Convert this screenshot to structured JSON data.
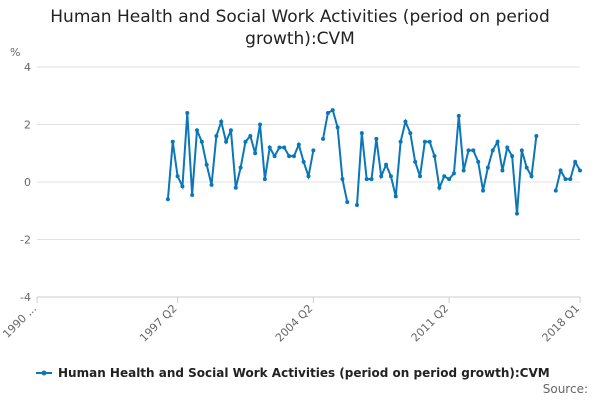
{
  "chart_data": {
    "type": "line",
    "title": "Human Health and Social Work Activities (period on period growth):CVM",
    "y_label": "%",
    "source": "Source:",
    "categories": [
      "1990 ...",
      null,
      null,
      null,
      null,
      null,
      null,
      null,
      null,
      null,
      null,
      null,
      null,
      null,
      null,
      null,
      null,
      null,
      null,
      null,
      null,
      null,
      null,
      null,
      null,
      null,
      null,
      null,
      null,
      "1997 Q2",
      null,
      null,
      null,
      null,
      null,
      null,
      null,
      null,
      null,
      null,
      null,
      null,
      null,
      null,
      null,
      null,
      null,
      null,
      null,
      null,
      null,
      null,
      null,
      null,
      null,
      null,
      null,
      "2004 Q2",
      null,
      null,
      null,
      null,
      null,
      null,
      null,
      null,
      null,
      null,
      null,
      null,
      null,
      null,
      null,
      null,
      null,
      null,
      null,
      null,
      null,
      null,
      null,
      null,
      null,
      null,
      null,
      "2011 Q2",
      null,
      null,
      null,
      null,
      null,
      null,
      null,
      null,
      null,
      null,
      null,
      null,
      null,
      null,
      null,
      null,
      null,
      null,
      null,
      null,
      null,
      null,
      null,
      null,
      null,
      null,
      "2018 Q1"
    ],
    "series": [
      {
        "name": "Human Health and Social Work Activities (period on period growth):CVM",
        "color": "#0b76b8",
        "values": [
          null,
          null,
          null,
          null,
          null,
          null,
          null,
          null,
          null,
          null,
          null,
          null,
          null,
          null,
          null,
          null,
          null,
          null,
          null,
          null,
          null,
          null,
          null,
          null,
          null,
          null,
          null,
          -0.6,
          1.4,
          0.2,
          -0.15,
          2.4,
          -0.45,
          1.8,
          1.4,
          0.6,
          -0.1,
          1.6,
          2.1,
          1.4,
          1.8,
          -0.2,
          0.5,
          1.4,
          1.6,
          1.0,
          2.0,
          0.1,
          1.2,
          0.9,
          1.2,
          1.2,
          0.9,
          0.9,
          1.3,
          0.7,
          0.2,
          1.1,
          null,
          1.5,
          2.4,
          2.5,
          1.9,
          0.1,
          -0.7,
          null,
          -0.8,
          1.7,
          0.1,
          0.1,
          1.5,
          0.2,
          0.6,
          0.2,
          -0.5,
          1.4,
          2.1,
          1.7,
          0.7,
          0.2,
          1.4,
          1.4,
          0.9,
          -0.2,
          0.2,
          0.1,
          0.3,
          2.3,
          0.4,
          1.1,
          1.1,
          0.7,
          -0.3,
          0.5,
          1.1,
          1.4,
          0.4,
          1.2,
          0.9,
          -1.1,
          1.1,
          0.5,
          0.2,
          1.6,
          null,
          null,
          null,
          -0.3,
          0.4,
          0.1,
          0.1,
          0.7,
          0.4
        ]
      }
    ],
    "ylim": [
      -4,
      4
    ],
    "yticks": [
      -4,
      -2,
      0,
      2,
      4
    ],
    "grid": true
  }
}
